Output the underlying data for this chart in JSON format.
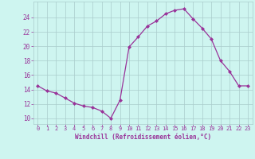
{
  "x": [
    0,
    1,
    2,
    3,
    4,
    5,
    6,
    7,
    8,
    9,
    10,
    11,
    12,
    13,
    14,
    15,
    16,
    17,
    18,
    19,
    20,
    21,
    22,
    23
  ],
  "y": [
    14.5,
    13.8,
    13.5,
    12.8,
    12.1,
    11.7,
    11.5,
    11.0,
    10.0,
    12.5,
    19.9,
    21.3,
    22.8,
    23.5,
    24.5,
    25.0,
    25.2,
    23.8,
    22.5,
    21.0,
    18.0,
    16.5,
    14.5,
    14.5
  ],
  "line_color": "#993399",
  "marker": "D",
  "marker_size": 2.0,
  "background_color": "#cef5f0",
  "grid_color": "#aacccc",
  "xlabel": "Windchill (Refroidissement éolien,°C)",
  "yticks": [
    10,
    12,
    14,
    16,
    18,
    20,
    22,
    24
  ],
  "ylim": [
    9.2,
    26.2
  ],
  "xlim": [
    -0.5,
    23.5
  ],
  "tick_color": "#993399",
  "label_color": "#993399",
  "xtick_labels": [
    "0",
    "1",
    "2",
    "3",
    "4",
    "5",
    "6",
    "7",
    "8",
    "9",
    "10",
    "11",
    "12",
    "13",
    "14",
    "15",
    "16",
    "17",
    "18",
    "19",
    "20",
    "21",
    "22",
    "23"
  ]
}
